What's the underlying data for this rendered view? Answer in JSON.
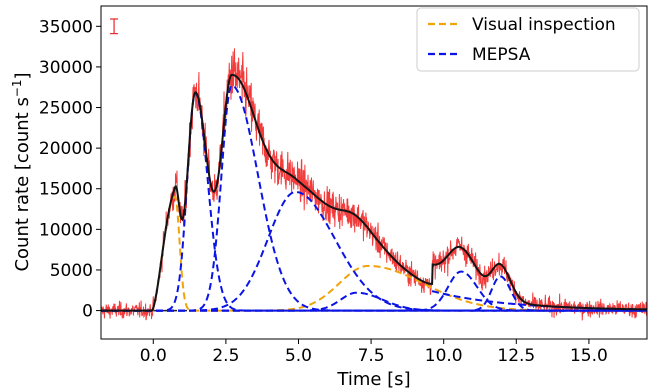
{
  "chart_data": {
    "type": "line",
    "xlabel": "Time [s]",
    "ylabel": "Count rate [count s",
    "ylabel_sup": "−1",
    "ylabel_close": "]",
    "xlim": [
      -1.8,
      17.0
    ],
    "ylim": [
      -3500,
      37500
    ],
    "xticks": [
      0.0,
      2.5,
      5.0,
      7.5,
      10.0,
      12.5,
      15.0
    ],
    "xtick_labels": [
      "0.0",
      "2.5",
      "5.0",
      "7.5",
      "10.0",
      "12.5",
      "15.0"
    ],
    "yticks": [
      0,
      5000,
      10000,
      15000,
      20000,
      25000,
      30000,
      35000
    ],
    "ytick_labels": [
      "0",
      "5000",
      "10000",
      "15000",
      "20000",
      "25000",
      "30000",
      "35000"
    ],
    "legend_position": "top-right",
    "error_bar": {
      "x": -1.35,
      "y": 35000,
      "half_height": 900,
      "color": "#e8262a"
    },
    "series": [
      {
        "name": "Visual inspection",
        "color": "#f0a30a",
        "style": "dashed"
      },
      {
        "name": "MEPSA",
        "color": "#0a14e6",
        "style": "dashed"
      }
    ],
    "observed_color": "#f23b3b",
    "fit_color": "#141414",
    "components": {
      "visual": [
        {
          "type": "rise",
          "t0": -0.05,
          "tpeak": 0.75,
          "amp": 14000,
          "decay": 0.22
        },
        {
          "type": "pulse",
          "mu": 7.4,
          "sl": 1.0,
          "sr": 1.9,
          "amp": 5500
        }
      ],
      "mepsa": [
        {
          "mu": 1.45,
          "sl": 0.28,
          "sr": 0.42,
          "amp": 26800
        },
        {
          "mu": 2.7,
          "sl": 0.35,
          "sr": 0.9,
          "amp": 27700
        },
        {
          "mu": 4.9,
          "sl": 0.95,
          "sr": 1.35,
          "amp": 14600
        },
        {
          "mu": 7.0,
          "sl": 0.55,
          "sr": 0.9,
          "amp": 2200
        },
        {
          "mu": 10.6,
          "sl": 0.45,
          "sr": 0.55,
          "amp": 4800
        },
        {
          "mu": 11.95,
          "sl": 0.3,
          "sr": 0.35,
          "amp": 4200
        }
      ],
      "mepsa_tail": {
        "t0": 9.6,
        "amp": 2400,
        "decay": 2.6
      }
    }
  }
}
